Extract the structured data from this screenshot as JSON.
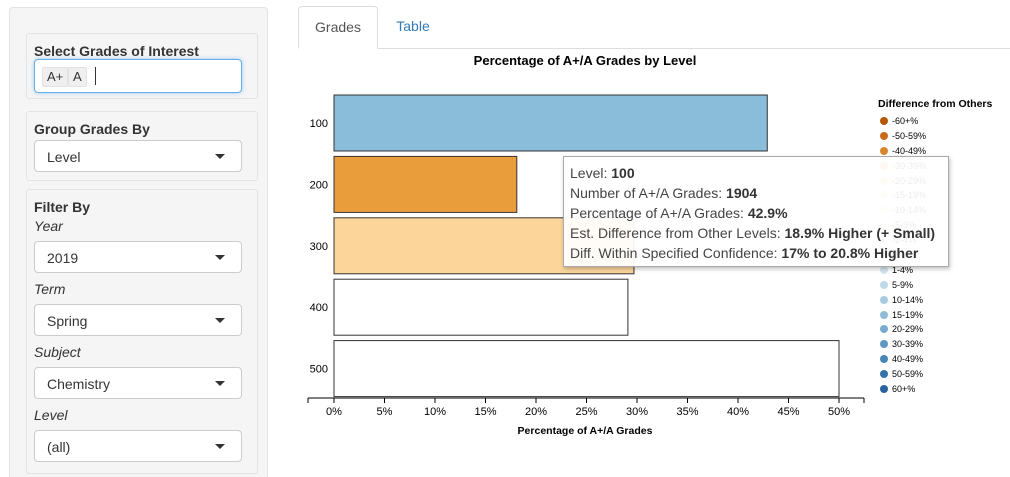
{
  "sidebar": {
    "grades": {
      "title": "Select Grades of Interest",
      "chips": [
        "A+",
        "A"
      ]
    },
    "group_by": {
      "title": "Group Grades By",
      "value": "Level"
    },
    "filter": {
      "title": "Filter By",
      "year": {
        "label": "Year",
        "value": "2019"
      },
      "term": {
        "label": "Term",
        "value": "Spring"
      },
      "subject": {
        "label": "Subject",
        "value": "Chemistry"
      },
      "level": {
        "label": "Level",
        "value": "(all)"
      }
    }
  },
  "tabs": [
    {
      "label": "Grades",
      "active": true
    },
    {
      "label": "Table",
      "active": false
    }
  ],
  "chart_data": {
    "type": "bar",
    "orientation": "horizontal",
    "title": "Percentage of A+/A Grades by Level",
    "xlabel": "Percentage of A+/A Grades",
    "ylabel": "",
    "categories": [
      "100",
      "200",
      "300",
      "400",
      "500"
    ],
    "values": [
      42.9,
      18.1,
      29.7,
      29.1,
      50.0
    ],
    "bar_colors": [
      "#89bdd9",
      "#ea9d3b",
      "#fcd59b",
      "#ffffff",
      "#ffffff"
    ],
    "xlim": [
      0,
      50
    ],
    "xticks": [
      "0%",
      "5%",
      "10%",
      "15%",
      "20%",
      "25%",
      "30%",
      "35%",
      "40%",
      "45%",
      "50%"
    ]
  },
  "legend": {
    "title": "Difference from Others",
    "items": [
      {
        "label": "-60+%",
        "color": "#b35806"
      },
      {
        "label": "-50-59%",
        "color": "#c96b18"
      },
      {
        "label": "-40-49%",
        "color": "#d8862e"
      },
      {
        "label": "-30-39%",
        "color": "#e5a150"
      },
      {
        "label": "-20-29%",
        "color": "#efbb78"
      },
      {
        "label": "-15-19%",
        "color": "#f5cf9d"
      },
      {
        "label": "-10-14%",
        "color": "#f9dfbe"
      },
      {
        "label": "-5-9%",
        "color": "#fcebd9"
      },
      {
        "label": "-1-4%",
        "color": "#fdf3e8"
      },
      {
        "label": "0%",
        "color": "#f7f7f7"
      },
      {
        "label": "1-4%",
        "color": "#d4e6f1"
      },
      {
        "label": "5-9%",
        "color": "#bfd8e8"
      },
      {
        "label": "10-14%",
        "color": "#a8cbe0"
      },
      {
        "label": "15-19%",
        "color": "#91bcd8"
      },
      {
        "label": "20-29%",
        "color": "#78abcd"
      },
      {
        "label": "30-39%",
        "color": "#5f98c1"
      },
      {
        "label": "40-49%",
        "color": "#4884b4"
      },
      {
        "label": "50-59%",
        "color": "#3573a9"
      },
      {
        "label": "60+%",
        "color": "#2a639c"
      }
    ]
  },
  "tooltip": {
    "level_label": "Level: ",
    "level_value": "100",
    "count_label": "Number of A+/A Grades: ",
    "count_value": "1904",
    "pct_label": "Percentage of A+/A Grades: ",
    "pct_value": "42.9%",
    "diff_label": "Est. Difference from Other Levels: ",
    "diff_value": "18.9% Higher (+ Small)",
    "conf_label": "Diff. Within Specified Confidence: ",
    "conf_value": "17% to 20.8% Higher"
  }
}
